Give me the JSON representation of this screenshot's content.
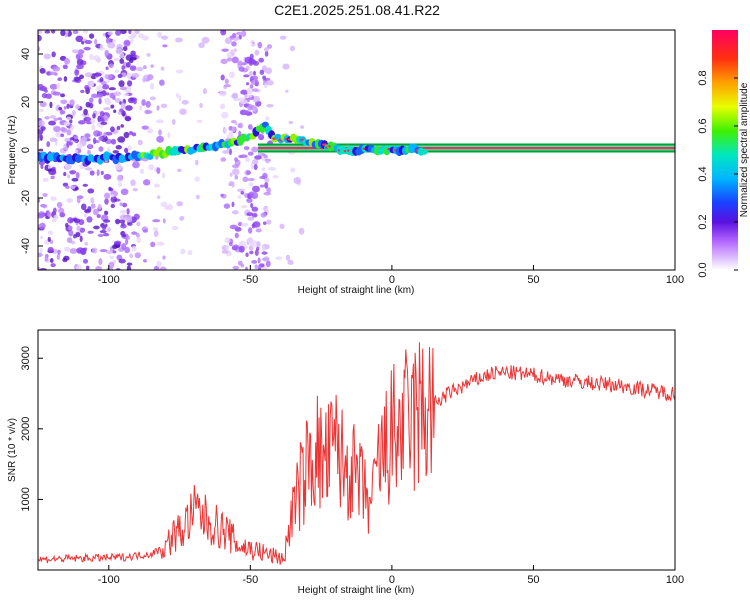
{
  "title": "C2E1.2025.251.08.41.R22",
  "colors": {
    "snr_line": "#ee3333",
    "ridge": "#ff2a4a",
    "axis": "#000000"
  },
  "colorbar": {
    "label": "Normalized spectral amplitude",
    "range": [
      0.0,
      1.0
    ],
    "ticks": [
      "0.0",
      "0.2",
      "0.4",
      "0.6",
      "0.8"
    ],
    "tick_values": [
      0.0,
      0.2,
      0.4,
      0.6,
      0.8
    ]
  },
  "chart_data": [
    {
      "type": "heatmap",
      "title": "C2E1.2025.251.08.41.R22",
      "xlabel": "Height of straight line (km)",
      "ylabel": "Frequency (Hz)",
      "xlim": [
        -125,
        100
      ],
      "ylim": [
        -50,
        50
      ],
      "xticks": [
        -100,
        -50,
        0,
        50,
        100
      ],
      "xtick_labels": [
        "-100",
        "-50",
        "0",
        "50",
        "100"
      ],
      "yticks": [
        -40,
        -20,
        0,
        20,
        40
      ],
      "ytick_labels": [
        "-40",
        "-20",
        "0",
        "20",
        "40"
      ],
      "ridge": {
        "x": [
          -125,
          -110,
          -95,
          -85,
          -75,
          -65,
          -55,
          -48,
          -45,
          -42,
          -35,
          -28,
          -20,
          -15,
          -10,
          -5,
          0,
          10,
          20,
          50,
          100
        ],
        "freq": [
          -3,
          -4,
          -3,
          -2,
          0,
          1,
          3,
          7,
          11,
          5,
          5,
          3,
          1,
          -1,
          0,
          0,
          0,
          0,
          0,
          0,
          0
        ]
      }
    },
    {
      "type": "line",
      "xlabel": "Height of straight line (km)",
      "ylabel": "SNR (10 * v/v)",
      "xlim": [
        -125,
        100
      ],
      "ylim": [
        0,
        3400
      ],
      "xticks": [
        -100,
        -50,
        0,
        50,
        100
      ],
      "xtick_labels": [
        "-100",
        "-50",
        "0",
        "50",
        "100"
      ],
      "yticks": [
        1000,
        2000,
        3000
      ],
      "ytick_labels": [
        "1000",
        "2000",
        "3000"
      ],
      "series": [
        {
          "name": "SNR",
          "x": [
            -125,
            -115,
            -105,
            -95,
            -85,
            -80,
            -77,
            -74,
            -72,
            -69,
            -66,
            -62,
            -58,
            -54,
            -50,
            -46,
            -42,
            -38,
            -36,
            -33,
            -30,
            -27,
            -24,
            -21,
            -19,
            -17,
            -15,
            -13,
            -11,
            -9,
            -7,
            -5,
            -3,
            0,
            5,
            10,
            15,
            20,
            25,
            30,
            35,
            40,
            45,
            50,
            60,
            70,
            80,
            90,
            100
          ],
          "y": [
            150,
            160,
            170,
            180,
            230,
            330,
            500,
            560,
            700,
            850,
            720,
            620,
            520,
            340,
            300,
            250,
            200,
            160,
            700,
            1100,
            1450,
            1700,
            1500,
            1650,
            1800,
            1400,
            1500,
            1300,
            1200,
            1000,
            900,
            1500,
            1600,
            1900,
            2050,
            2200,
            2350,
            2500,
            2600,
            2700,
            2780,
            2800,
            2780,
            2760,
            2700,
            2650,
            2620,
            2550,
            2500
          ]
        }
      ]
    }
  ]
}
